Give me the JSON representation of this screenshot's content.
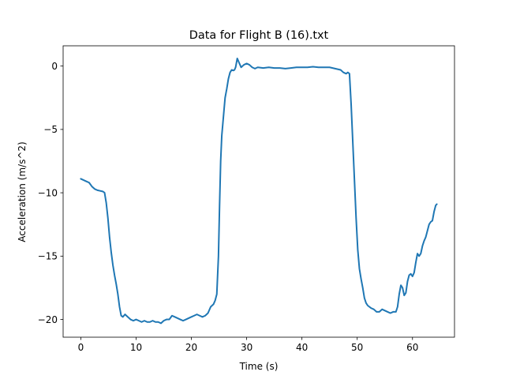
{
  "chart_data": {
    "type": "line",
    "title": "Data for Flight B (16).txt",
    "xlabel": "Time (s)",
    "ylabel": "Acceleration (m/s^2)",
    "xlim": [
      -3.2,
      67.6
    ],
    "ylim": [
      -21.4,
      1.6
    ],
    "xticks": [
      0,
      10,
      20,
      30,
      40,
      50,
      60
    ],
    "xtick_labels": [
      "0",
      "10",
      "20",
      "30",
      "40",
      "50",
      "60"
    ],
    "yticks": [
      0,
      -5,
      -10,
      -15,
      -20
    ],
    "ytick_labels": [
      "0",
      "−5",
      "−10",
      "−15",
      "−20"
    ],
    "grid": false,
    "line_color": "#1f77b4",
    "series": [
      {
        "x": [
          0.0,
          0.5,
          1.0,
          1.5,
          2.0,
          2.5,
          3.0,
          3.5,
          4.0,
          4.3,
          4.6,
          4.9,
          5.2,
          5.5,
          5.8,
          6.1,
          6.4,
          6.7,
          7.0,
          7.3,
          7.6,
          8.0,
          8.5,
          9.0,
          9.5,
          10.0,
          10.5,
          11.0,
          11.5,
          12.0,
          12.5,
          13.0,
          13.5,
          14.0,
          14.5,
          15.0,
          15.5,
          16.0,
          16.5,
          17.0,
          17.5,
          18.0,
          18.5,
          19.0,
          19.5,
          20.0,
          20.5,
          21.0,
          21.5,
          22.0,
          22.5,
          23.0,
          23.5,
          24.0,
          24.3,
          24.6,
          24.9,
          25.1,
          25.3,
          25.5,
          25.7,
          25.9,
          26.1,
          26.4,
          26.7,
          27.0,
          27.3,
          27.6,
          27.8,
          28.0,
          28.3,
          28.6,
          29.0,
          29.5,
          30.0,
          30.5,
          31.0,
          31.5,
          32.0,
          33.0,
          34.0,
          35.0,
          36.0,
          37.0,
          38.0,
          39.0,
          40.0,
          41.0,
          42.0,
          43.0,
          44.0,
          45.0,
          46.0,
          47.0,
          47.5,
          48.0,
          48.3,
          48.6,
          48.9,
          49.2,
          49.5,
          49.8,
          50.1,
          50.4,
          50.7,
          51.0,
          51.3,
          51.6,
          51.9,
          52.2,
          52.5,
          53.0,
          53.5,
          54.0,
          54.5,
          55.0,
          55.5,
          56.0,
          56.5,
          57.0,
          57.3,
          57.6,
          57.9,
          58.2,
          58.5,
          58.8,
          59.1,
          59.4,
          59.7,
          60.0,
          60.3,
          60.6,
          60.9,
          61.2,
          61.5,
          61.8,
          62.1,
          62.4,
          62.7,
          63.0,
          63.3,
          63.6,
          63.9,
          64.2,
          64.4
        ],
        "y": [
          -8.9,
          -9.0,
          -9.1,
          -9.2,
          -9.5,
          -9.7,
          -9.8,
          -9.85,
          -9.9,
          -10.0,
          -10.8,
          -12.0,
          -13.5,
          -14.7,
          -15.7,
          -16.5,
          -17.2,
          -18.0,
          -19.0,
          -19.7,
          -19.8,
          -19.6,
          -19.8,
          -20.0,
          -20.1,
          -20.0,
          -20.1,
          -20.2,
          -20.1,
          -20.2,
          -20.2,
          -20.1,
          -20.2,
          -20.2,
          -20.3,
          -20.1,
          -20.0,
          -20.0,
          -19.7,
          -19.8,
          -19.9,
          -20.0,
          -20.1,
          -20.0,
          -19.9,
          -19.8,
          -19.7,
          -19.6,
          -19.7,
          -19.8,
          -19.7,
          -19.5,
          -19.0,
          -18.8,
          -18.5,
          -18.0,
          -15.0,
          -11.0,
          -7.5,
          -5.5,
          -4.5,
          -3.5,
          -2.5,
          -1.8,
          -1.0,
          -0.5,
          -0.3,
          -0.35,
          -0.3,
          -0.1,
          0.6,
          0.3,
          -0.1,
          0.1,
          0.2,
          0.1,
          -0.1,
          -0.2,
          -0.1,
          -0.15,
          -0.1,
          -0.15,
          -0.15,
          -0.2,
          -0.15,
          -0.1,
          -0.1,
          -0.1,
          -0.05,
          -0.1,
          -0.1,
          -0.1,
          -0.2,
          -0.3,
          -0.5,
          -0.6,
          -0.5,
          -0.6,
          -3.0,
          -6.0,
          -9.0,
          -12.0,
          -14.5,
          -16.0,
          -16.8,
          -17.5,
          -18.3,
          -18.7,
          -18.9,
          -19.0,
          -19.1,
          -19.2,
          -19.4,
          -19.4,
          -19.2,
          -19.3,
          -19.4,
          -19.5,
          -19.4,
          -19.4,
          -19.0,
          -18.0,
          -17.3,
          -17.5,
          -18.1,
          -17.9,
          -17.0,
          -16.5,
          -16.4,
          -16.6,
          -16.3,
          -15.5,
          -14.8,
          -15.0,
          -14.8,
          -14.2,
          -13.8,
          -13.5,
          -13.0,
          -12.5,
          -12.3,
          -12.2,
          -11.5,
          -11.0,
          -10.9
        ],
        "values_precision": "estimated from gridlines"
      }
    ]
  }
}
